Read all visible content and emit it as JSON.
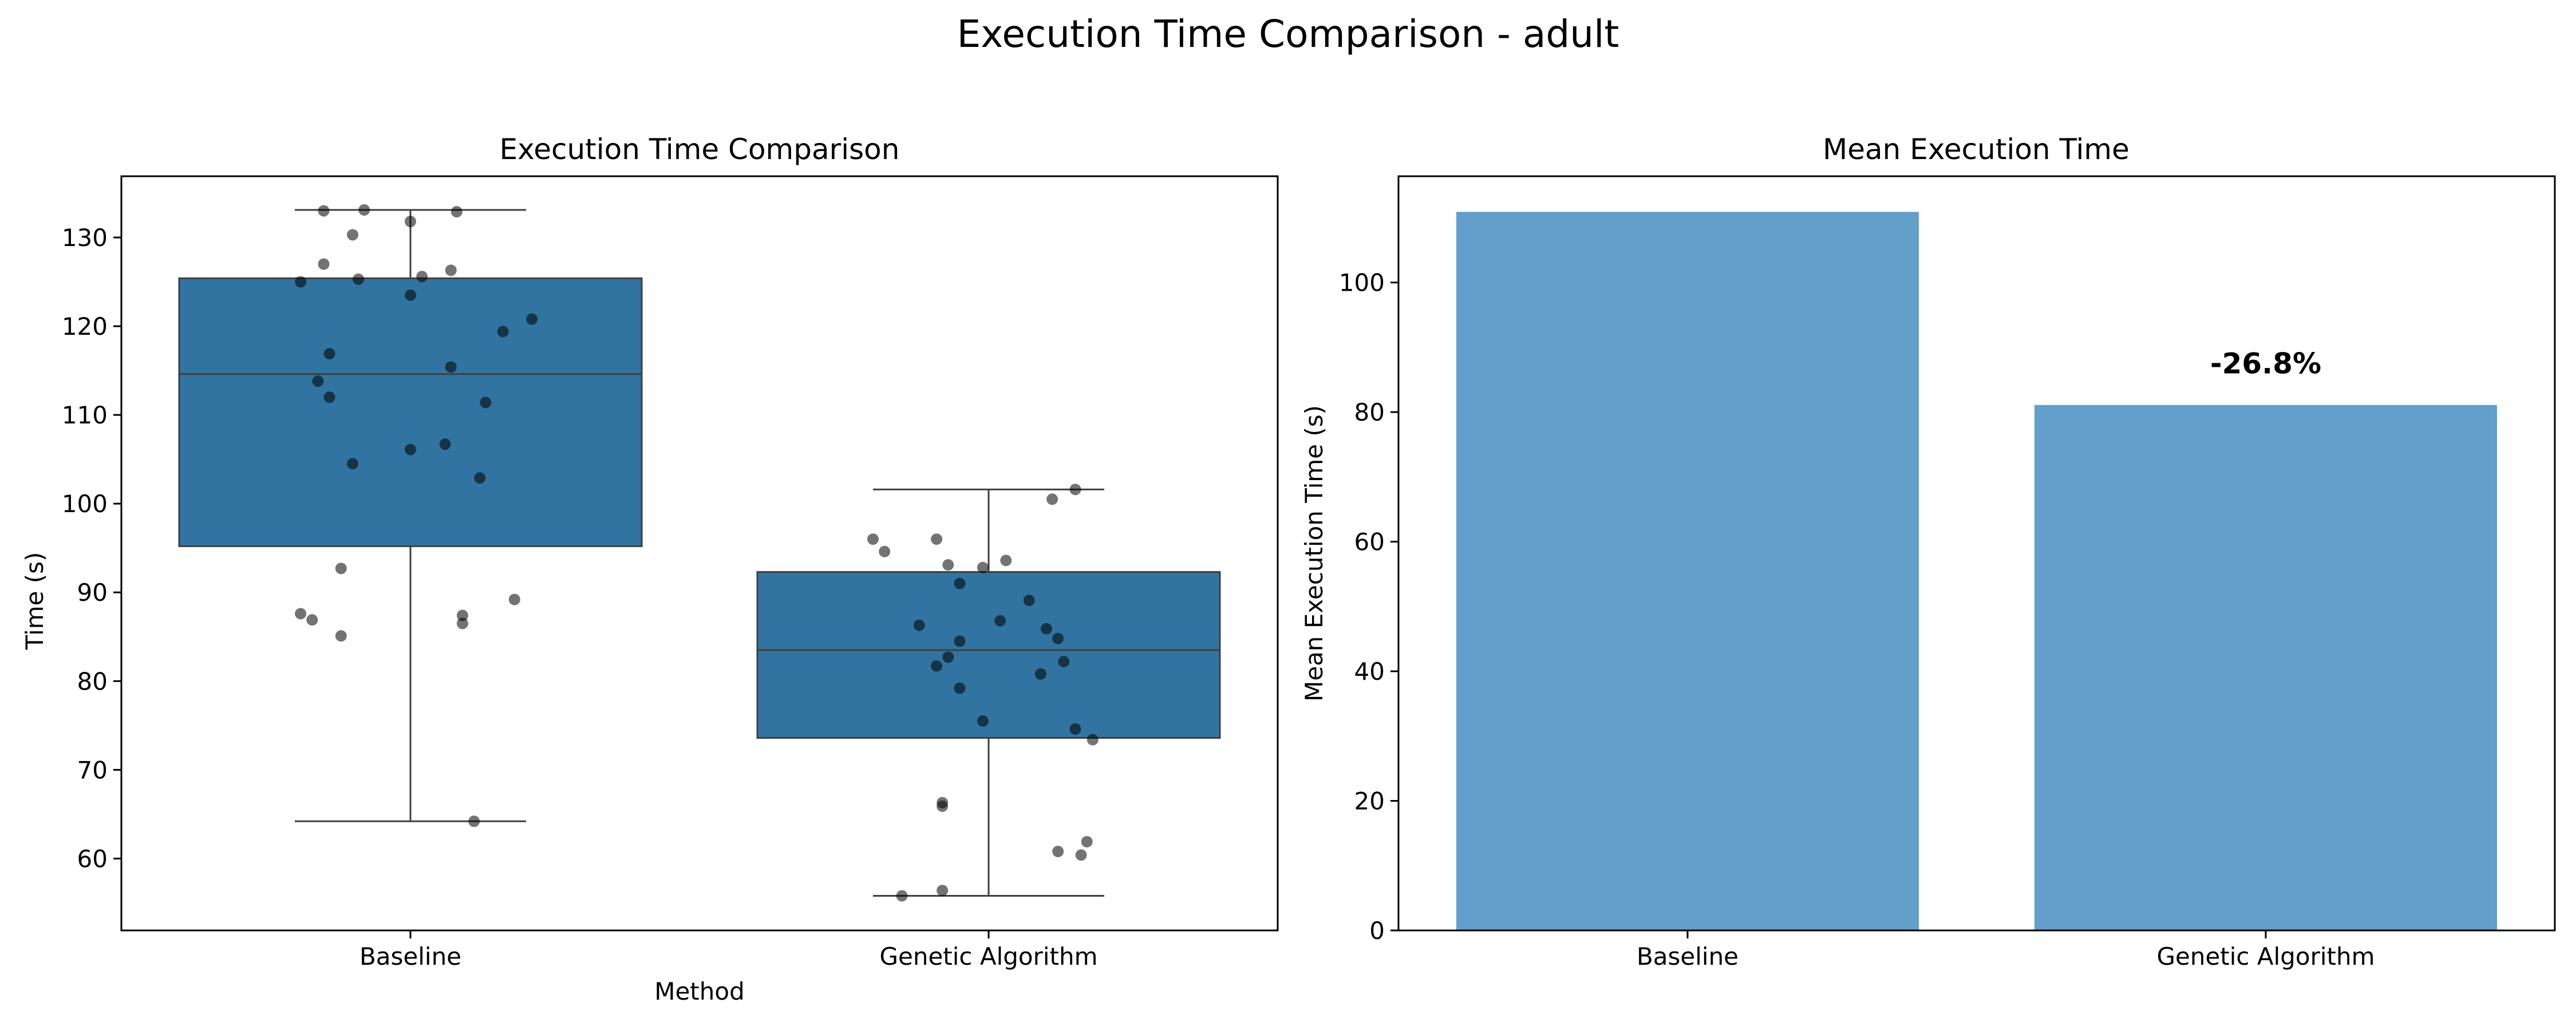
{
  "figure": {
    "suptitle": "Execution Time Comparison - adult"
  },
  "chart_data": [
    {
      "type": "box",
      "title": "Execution Time Comparison",
      "xlabel": "Method",
      "ylabel": "Time (s)",
      "ylim": [
        51.9,
        136.9
      ],
      "yticks": [
        60,
        70,
        80,
        90,
        100,
        110,
        120,
        130
      ],
      "grid": false,
      "categories": [
        "Baseline",
        "Genetic Algorithm"
      ],
      "box_color": "#3274a1",
      "point_color": "#000000",
      "boxes": [
        {
          "category": "Baseline",
          "whisker_low": 64.2,
          "q1": 95.2,
          "median": 114.6,
          "q3": 125.4,
          "whisker_high": 133.1
        },
        {
          "category": "Genetic Algorithm",
          "whisker_low": 55.8,
          "q1": 73.6,
          "median": 83.5,
          "q3": 92.3,
          "whisker_high": 101.6
        }
      ],
      "points": [
        {
          "category": "Baseline",
          "values": [
            133.0,
            133.1,
            132.9,
            131.8,
            130.3,
            127.0,
            126.3,
            125.6,
            125.3,
            125.0,
            123.5,
            120.8,
            119.4,
            116.9,
            115.4,
            113.8,
            112.0,
            111.4,
            106.7,
            106.1,
            104.5,
            102.9,
            92.7,
            89.2,
            87.6,
            87.4,
            86.9,
            86.5,
            85.1,
            64.2
          ],
          "jitter": [
            -0.15,
            -0.08,
            0.08,
            0.0,
            -0.1,
            -0.15,
            0.07,
            0.02,
            -0.09,
            -0.19,
            0.0,
            0.21,
            0.16,
            -0.14,
            0.07,
            -0.16,
            -0.14,
            0.13,
            0.06,
            0.0,
            -0.1,
            0.12,
            -0.12,
            0.18,
            -0.19,
            0.09,
            -0.17,
            0.09,
            -0.12,
            0.11
          ]
        },
        {
          "category": "Genetic Algorithm",
          "values": [
            101.6,
            100.5,
            96.0,
            96.0,
            94.6,
            93.6,
            93.1,
            92.8,
            91.0,
            89.1,
            86.8,
            86.3,
            85.9,
            84.8,
            84.5,
            82.7,
            82.2,
            81.7,
            80.8,
            79.2,
            75.5,
            74.6,
            73.4,
            66.3,
            65.9,
            61.9,
            60.8,
            60.4,
            56.4,
            55.8
          ],
          "jitter": [
            0.15,
            0.11,
            -0.2,
            -0.09,
            -0.18,
            0.03,
            -0.07,
            -0.01,
            -0.05,
            0.07,
            0.02,
            -0.12,
            0.1,
            0.12,
            -0.05,
            -0.07,
            0.13,
            -0.09,
            0.09,
            -0.05,
            -0.01,
            0.15,
            0.18,
            -0.08,
            -0.08,
            0.17,
            0.12,
            0.16,
            -0.08,
            -0.15
          ]
        }
      ]
    },
    {
      "type": "bar",
      "title": "Mean Execution Time",
      "xlabel": "",
      "ylabel": "Mean Execution Time (s)",
      "ylim": [
        0,
        116.4
      ],
      "yticks": [
        0,
        20,
        40,
        60,
        80,
        100
      ],
      "grid": false,
      "categories": [
        "Baseline",
        "Genetic Algorithm"
      ],
      "values": [
        110.9,
        81.1
      ],
      "bar_color": "#629fca",
      "annotations": [
        {
          "category": "Genetic Algorithm",
          "text": "-26.8%"
        }
      ]
    }
  ]
}
